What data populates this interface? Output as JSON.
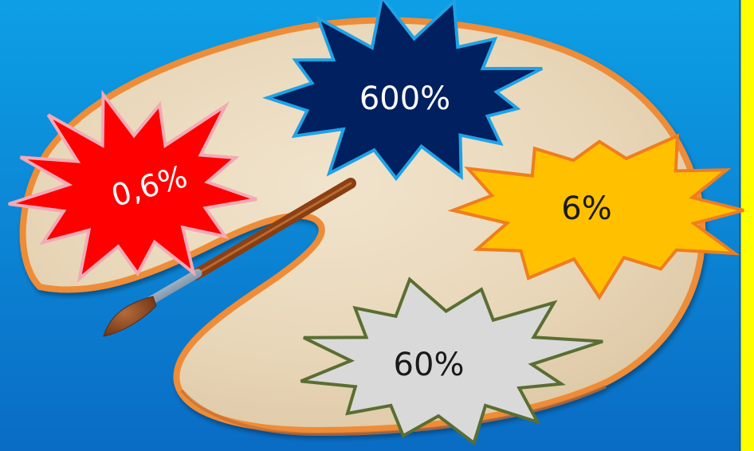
{
  "answers": {
    "a": {
      "text": "0,6%",
      "fill": "#ff0000",
      "stroke": "#f2aab5",
      "text_color": "#ffffff"
    },
    "b": {
      "text": "600%",
      "fill": "#002060",
      "stroke": "#1fa2e6",
      "text_color": "#ffffff"
    },
    "c": {
      "text": "6%",
      "fill": "#ffc000",
      "stroke": "#f07d1e",
      "text_color": "#1a1a1a"
    },
    "d": {
      "text": "60%",
      "fill": "#d9d9d9",
      "stroke": "#5a6e32",
      "text_color": "#1a1a1a"
    }
  },
  "colors": {
    "background_top": "#0d9fe6",
    "background_bottom": "#0a6cc4",
    "frame": "#ffff00",
    "palette_fill": "#ead9bd",
    "palette_rim": "#ee8c38"
  },
  "icons": {
    "palette": "painter-palette-icon",
    "brush": "paintbrush-icon"
  }
}
